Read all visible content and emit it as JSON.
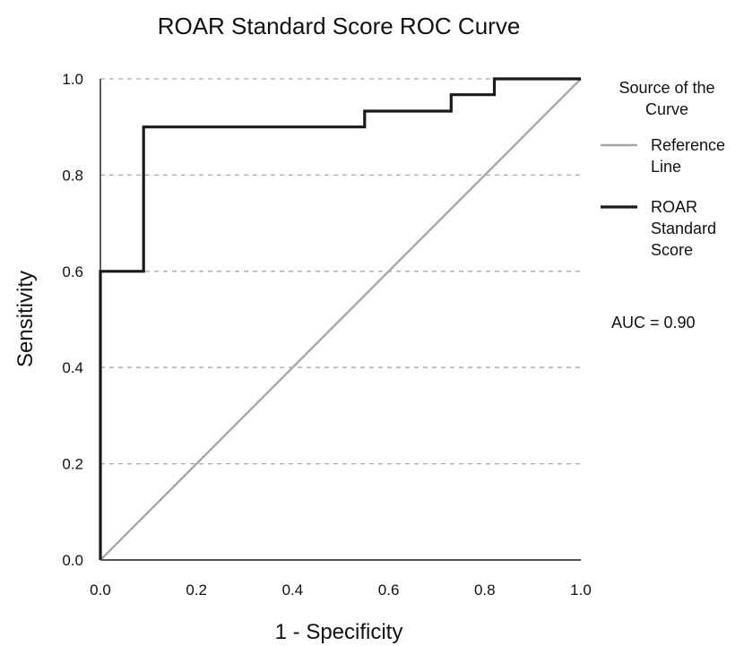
{
  "chart_data": {
    "type": "line",
    "title": "ROAR Standard Score ROC Curve",
    "xlabel": "1 - Specificity",
    "ylabel": "Sensitivity",
    "xlim": [
      0.0,
      1.0
    ],
    "ylim": [
      0.0,
      1.0
    ],
    "x_ticks": [
      0.0,
      0.2,
      0.4,
      0.6,
      0.8,
      1.0
    ],
    "x_tick_labels": [
      "0.0",
      "0.2",
      "0.4",
      "0.6",
      "0.8",
      "1.0"
    ],
    "y_ticks": [
      0.0,
      0.2,
      0.4,
      0.6,
      0.8,
      1.0
    ],
    "y_tick_labels": [
      "0.0",
      "0.2",
      "0.4",
      "0.6",
      "0.8",
      "1.0"
    ],
    "grid": "horizontal dashed",
    "legend": {
      "title_lines": [
        "Source of the",
        "Curve"
      ],
      "placement": "right",
      "entries": [
        {
          "label_lines": [
            "Reference",
            "Line"
          ],
          "color": "#a8a8a8"
        },
        {
          "label_lines": [
            "ROAR",
            "Standard",
            "Score"
          ],
          "color": "#1a1a1a"
        }
      ]
    },
    "annotation": "AUC = 0.90",
    "series": [
      {
        "name": "Reference Line",
        "color": "#a8a8a8",
        "style": "diagonal",
        "x": [
          0.0,
          1.0
        ],
        "y": [
          0.0,
          1.0
        ]
      },
      {
        "name": "ROAR Standard Score",
        "color": "#1a1a1a",
        "style": "step",
        "x": [
          0.0,
          0.0,
          0.0,
          0.09,
          0.09,
          0.55,
          0.55,
          0.73,
          0.73,
          0.82,
          0.82,
          1.0
        ],
        "y": [
          0.0,
          0.6,
          0.6,
          0.6,
          0.9,
          0.9,
          0.933,
          0.933,
          0.967,
          0.967,
          1.0,
          1.0
        ]
      }
    ]
  }
}
